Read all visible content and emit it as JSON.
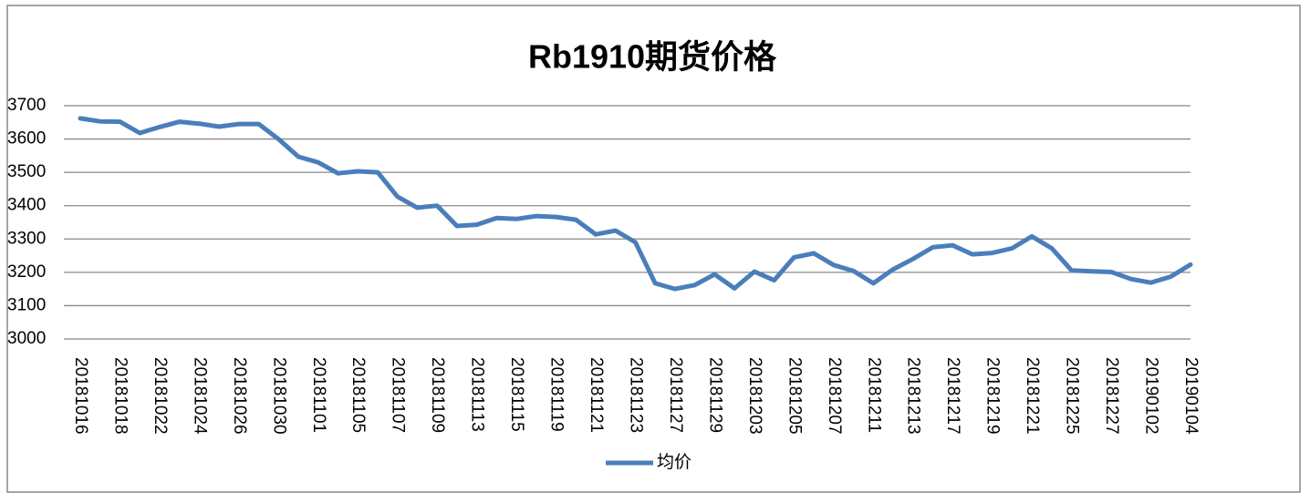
{
  "chart_data": {
    "type": "line",
    "title": "Rb1910期货价格",
    "categories": [
      "20181016",
      null,
      "20181018",
      null,
      "20181022",
      null,
      "20181024",
      null,
      "20181026",
      null,
      "20181030",
      null,
      "20181101",
      null,
      "20181105",
      null,
      "20181107",
      null,
      "20181109",
      null,
      "20181113",
      null,
      "20181115",
      null,
      "20181119",
      null,
      "20181121",
      null,
      "20181123",
      null,
      "20181127",
      null,
      "20181129",
      null,
      "20181203",
      null,
      "20181205",
      null,
      "20181207",
      null,
      "20181211",
      null,
      "20181213",
      null,
      "20181217",
      null,
      "20181219",
      null,
      "20181221",
      null,
      "20181225",
      null,
      "20181227",
      null,
      "20190102",
      null,
      "20190104"
    ],
    "series": [
      {
        "name": "均价",
        "color": "#4a7ebb",
        "values": [
          3662,
          3653,
          3652,
          3618,
          3636,
          3652,
          3646,
          3637,
          3645,
          3645,
          3600,
          3547,
          3530,
          3497,
          3503,
          3500,
          3427,
          3394,
          3400,
          3339,
          3343,
          3363,
          3360,
          3369,
          3366,
          3358,
          3314,
          3325,
          3290,
          3167,
          3150,
          3162,
          3194,
          3152,
          3202,
          3176,
          3245,
          3257,
          3222,
          3204,
          3167,
          3209,
          3240,
          3275,
          3281,
          3254,
          3258,
          3272,
          3308,
          3272,
          3206,
          3203,
          3201,
          3180,
          3169,
          3187,
          3223
        ]
      }
    ],
    "ylim": [
      3000,
      3700
    ],
    "yticks": [
      3000,
      3100,
      3200,
      3300,
      3400,
      3500,
      3600,
      3700
    ],
    "grid": true,
    "legend": "bottom"
  }
}
